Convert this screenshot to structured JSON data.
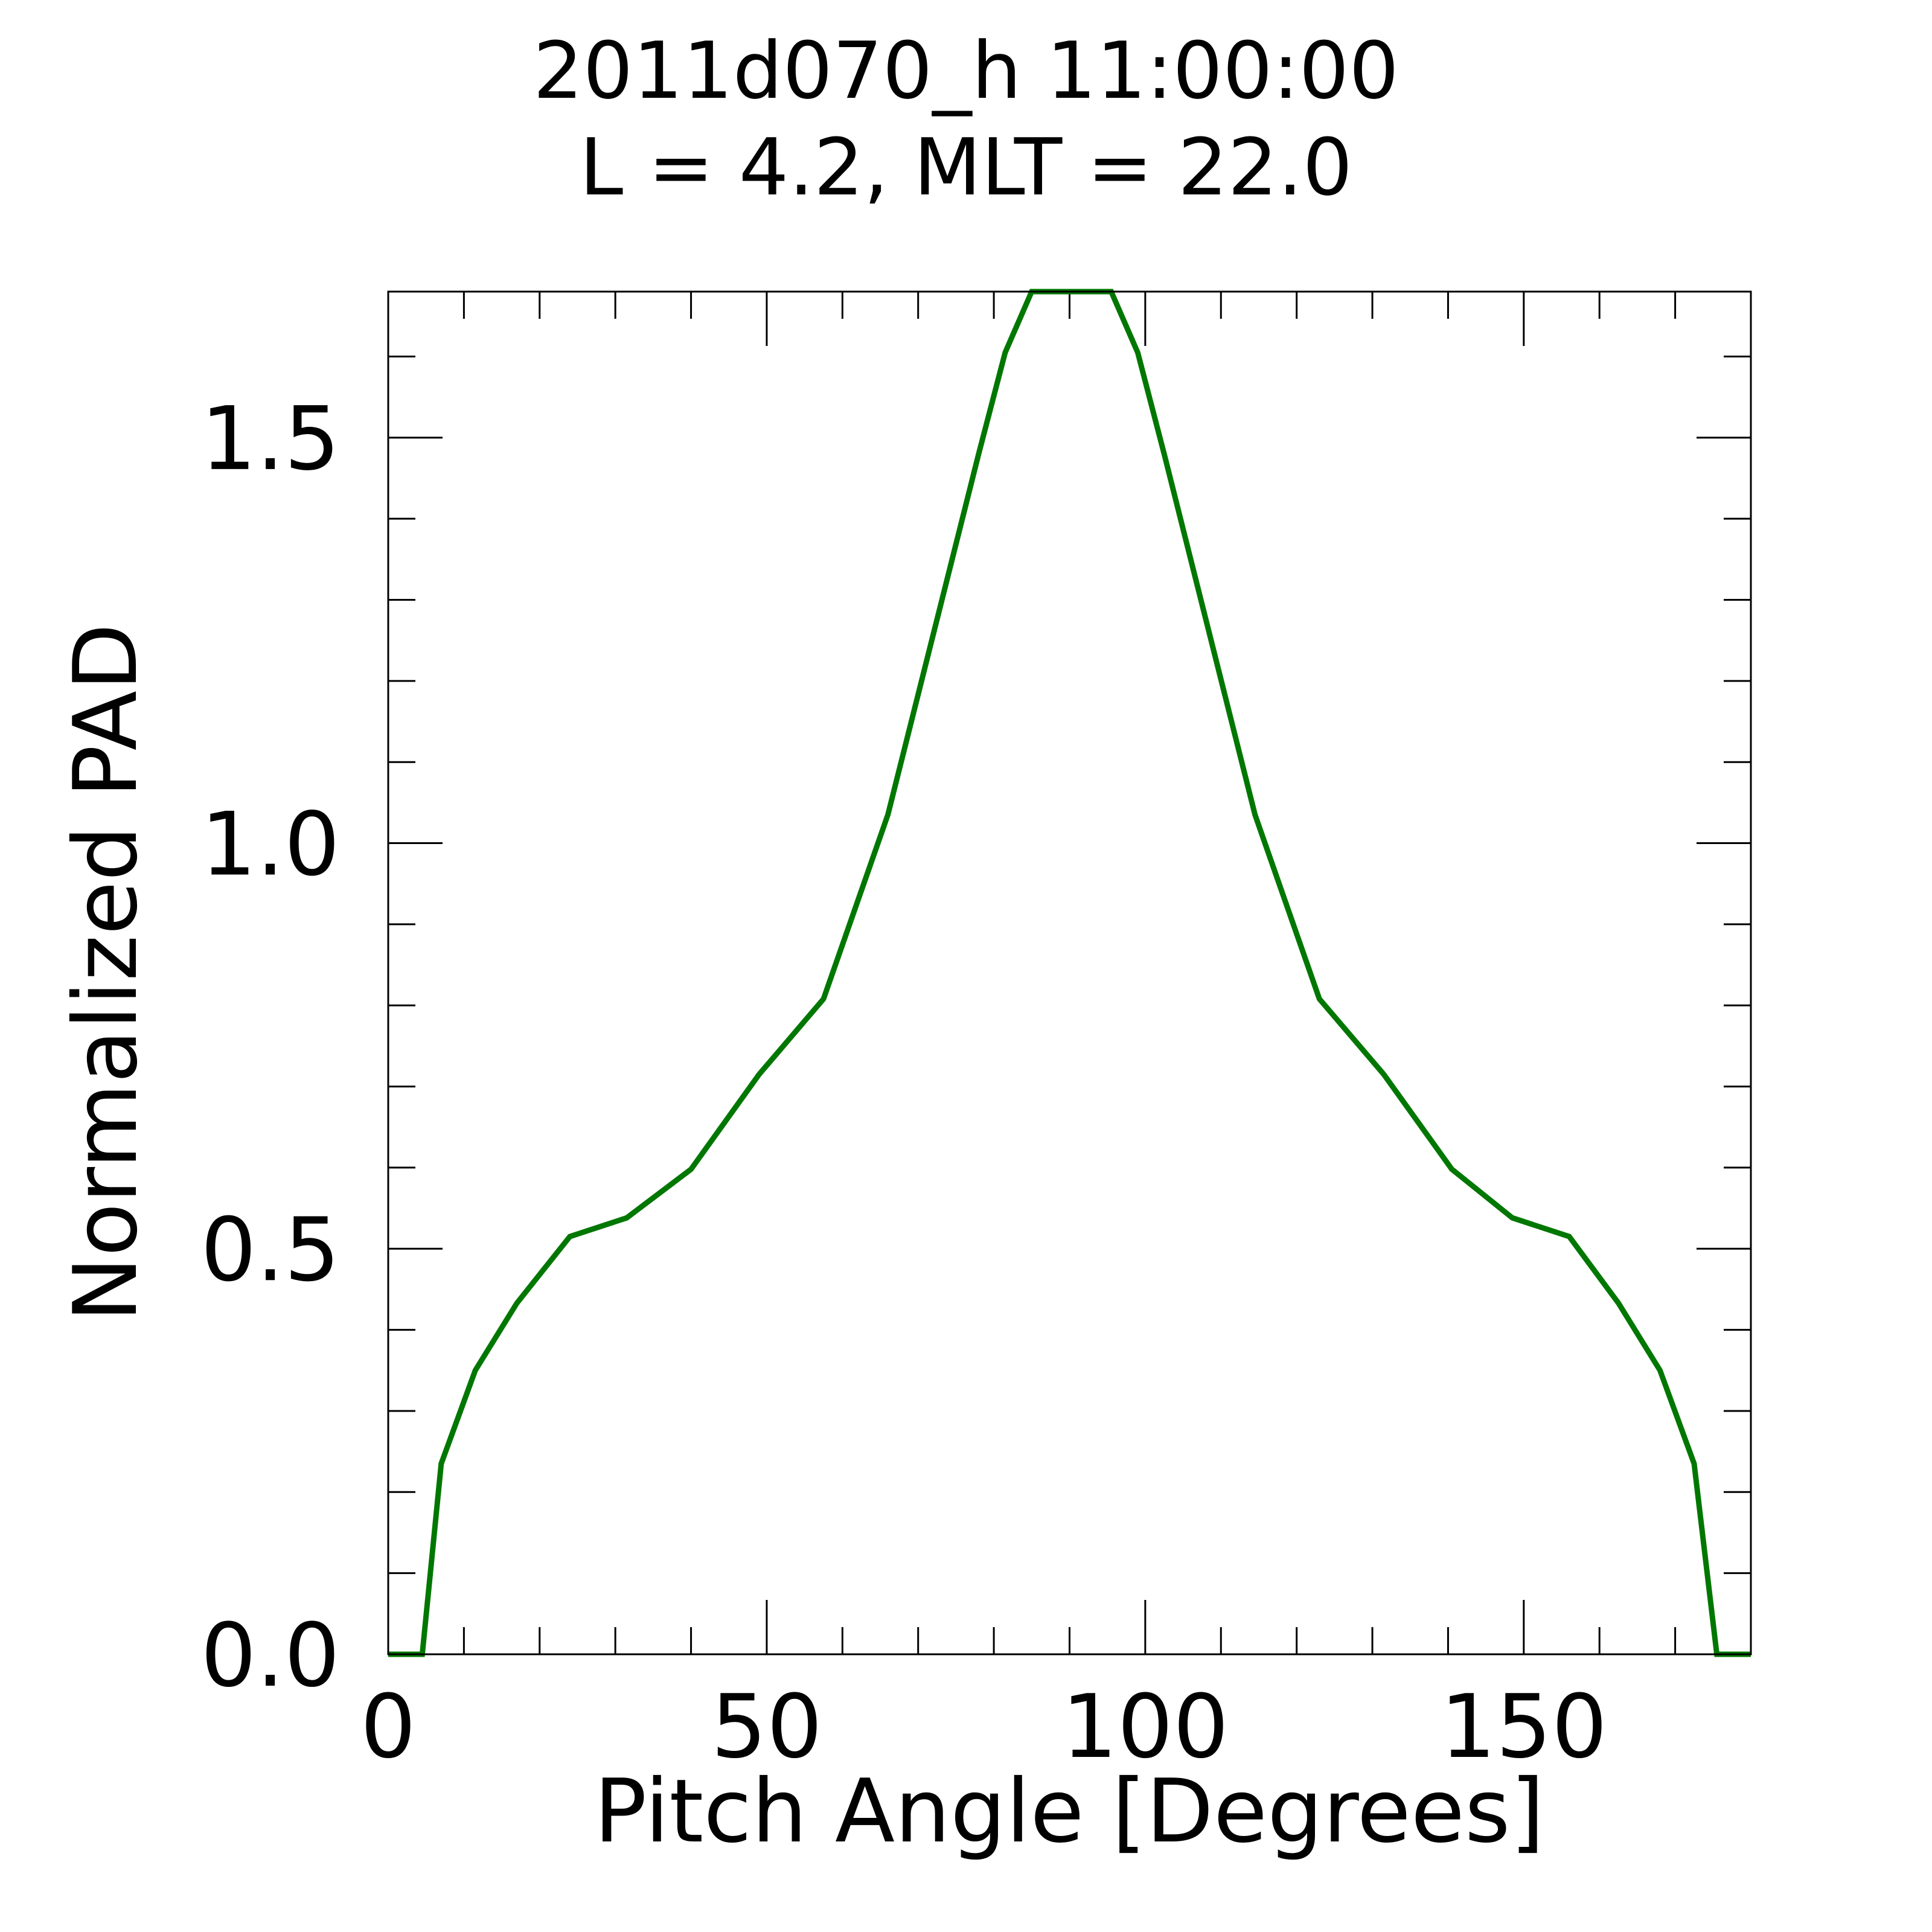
{
  "chart_data": {
    "type": "line",
    "title_line1": "2011d070_h  11:00:00",
    "title_line2": "L = 4.2, MLT = 22.0",
    "xlabel": "Pitch Angle [Degrees]",
    "ylabel": "Normalized PAD",
    "xlim": [
      0,
      180
    ],
    "ylim": [
      0,
      1.68
    ],
    "x_ticks": [
      {
        "value": 0,
        "label": "0"
      },
      {
        "value": 50,
        "label": "50"
      },
      {
        "value": 100,
        "label": "100"
      },
      {
        "value": 150,
        "label": "150"
      }
    ],
    "y_ticks": [
      {
        "value": 0.0,
        "label": "0.0"
      },
      {
        "value": 0.5,
        "label": "0.5"
      },
      {
        "value": 1.0,
        "label": "1.0"
      },
      {
        "value": 1.5,
        "label": "1.5"
      }
    ],
    "x_minor_step": 10,
    "y_minor_step": 0.1,
    "grid": false,
    "series": [
      {
        "color": "#007700",
        "x": [
          0,
          4.5,
          7,
          11.5,
          17,
          24,
          31.5,
          40,
          49,
          57.5,
          66,
          78,
          81.5,
          85,
          95.5,
          99,
          102.5,
          114.5,
          123,
          131.5,
          140.5,
          148.5,
          156,
          162.5,
          168,
          172.5,
          175.5,
          180
        ],
        "y": [
          0.0,
          0.0,
          0.235,
          0.35,
          0.433,
          0.515,
          0.538,
          0.598,
          0.715,
          0.808,
          1.035,
          1.48,
          1.605,
          1.68,
          1.68,
          1.605,
          1.48,
          1.035,
          0.808,
          0.715,
          0.598,
          0.538,
          0.515,
          0.433,
          0.35,
          0.235,
          0.0,
          0.0
        ]
      }
    ]
  }
}
